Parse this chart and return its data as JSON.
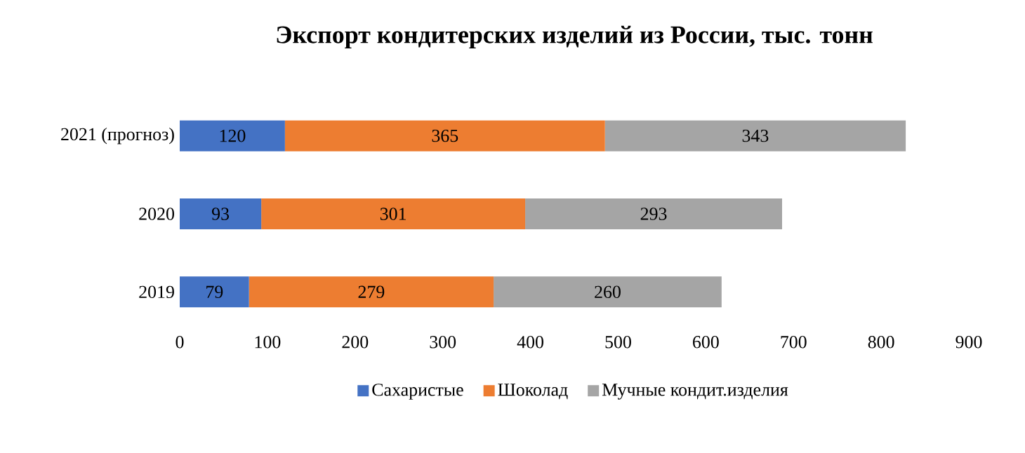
{
  "chart_data": {
    "type": "bar",
    "orientation": "horizontal",
    "stacked": true,
    "title": "Экспорт кондитерских изделий из России, тыс. тонн",
    "categories": [
      "2021 (прогноз)",
      "2020",
      "2019"
    ],
    "series": [
      {
        "name": "Сахаристые",
        "color": "#4472c4",
        "values": [
          120,
          93,
          79
        ]
      },
      {
        "name": "Шоколад",
        "color": "#ed7d31",
        "values": [
          365,
          301,
          279
        ]
      },
      {
        "name": "Мучные кондит.изделия",
        "color": "#a5a5a5",
        "values": [
          343,
          293,
          260
        ]
      }
    ],
    "xlim": [
      0,
      900
    ],
    "xticks": [
      0,
      100,
      200,
      300,
      400,
      500,
      600,
      700,
      800,
      900
    ],
    "data_labels": true,
    "legend": "bottom",
    "grid": false
  }
}
